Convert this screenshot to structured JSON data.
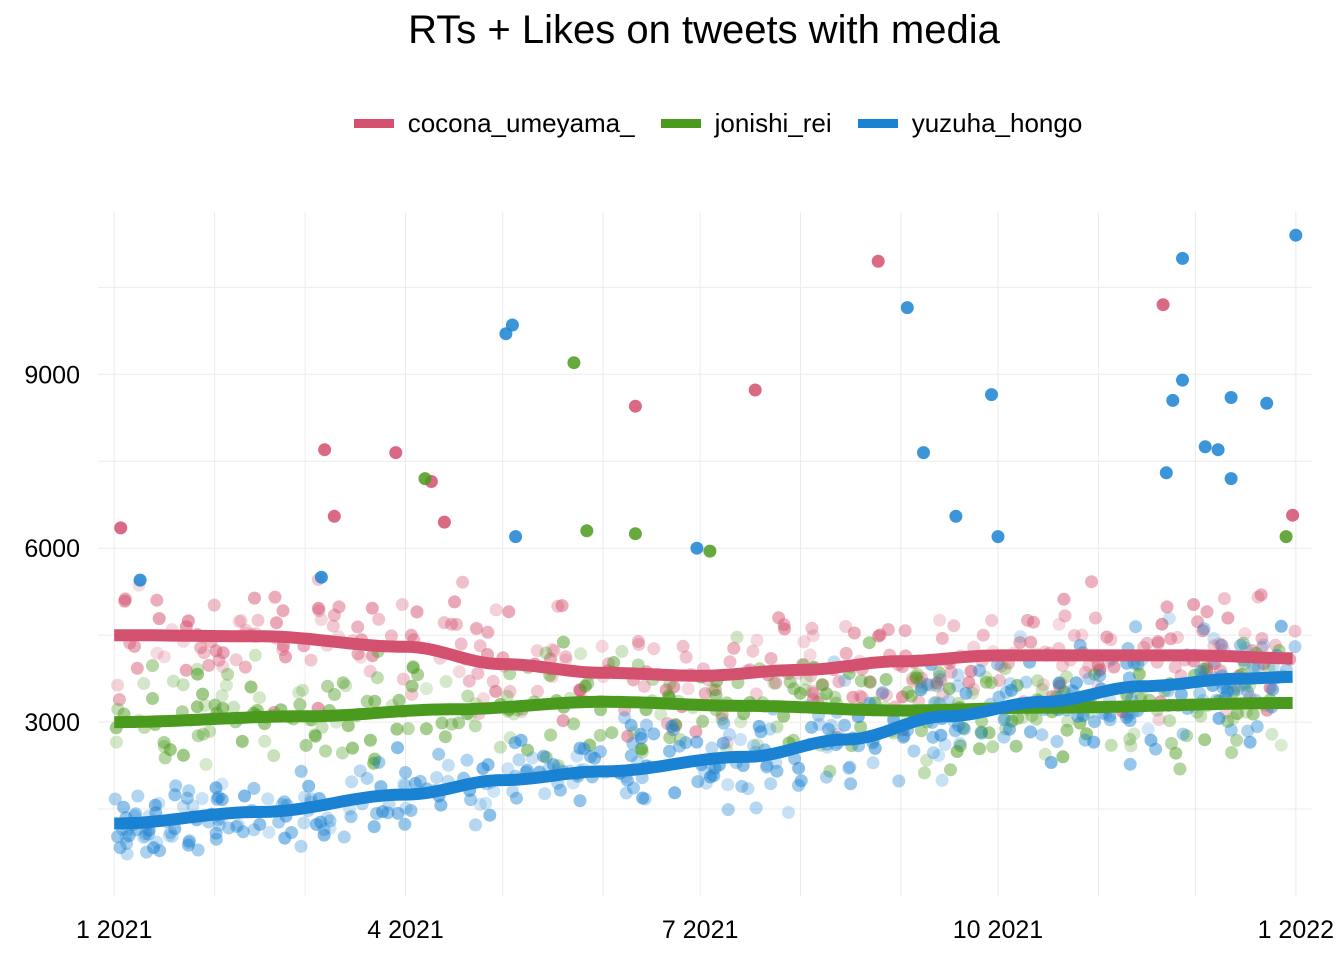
{
  "chart_data": {
    "type": "scatter",
    "title": "RTs + Likes on tweets with media",
    "xlabel": "",
    "ylabel": "",
    "x_ticks": [
      "1 2021",
      "4 2021",
      "7 2021",
      "10 2021",
      "1 2022"
    ],
    "y_ticks": [
      "3000",
      "6000",
      "9000"
    ],
    "xlim": [
      "2020-12-27",
      "2022-01-06"
    ],
    "ylim": [
      0,
      11800
    ],
    "grid": true,
    "legend_position": "top",
    "series": [
      {
        "name": "cocona_umeyama_",
        "color": "#d4506f",
        "trend": [
          [
            "2021-01-01",
            4500
          ],
          [
            "2021-02-15",
            4480
          ],
          [
            "2021-04-01",
            4300
          ],
          [
            "2021-05-01",
            4000
          ],
          [
            "2021-06-01",
            3850
          ],
          [
            "2021-07-01",
            3800
          ],
          [
            "2021-08-01",
            3900
          ],
          [
            "2021-09-01",
            4050
          ],
          [
            "2021-10-01",
            4150
          ],
          [
            "2021-11-01",
            4150
          ],
          [
            "2021-12-01",
            4150
          ],
          [
            "2022-01-01",
            4100
          ]
        ],
        "highlights": [
          [
            "2021-08-25",
            10950
          ],
          [
            "2021-11-21",
            10200
          ],
          [
            "2021-06-11",
            8450
          ],
          [
            "2021-07-18",
            8730
          ],
          [
            "2021-03-07",
            7700
          ],
          [
            "2021-03-29",
            7650
          ],
          [
            "2021-04-09",
            7150
          ],
          [
            "2021-01-03",
            6350
          ],
          [
            "2021-03-10",
            6550
          ],
          [
            "2021-04-13",
            6450
          ],
          [
            "2021-12-31",
            6570
          ]
        ]
      },
      {
        "name": "jonishi_rei",
        "color": "#4a9a1d",
        "trend": [
          [
            "2021-01-01",
            3000
          ],
          [
            "2021-03-01",
            3100
          ],
          [
            "2021-04-15",
            3220
          ],
          [
            "2021-06-01",
            3350
          ],
          [
            "2021-07-15",
            3280
          ],
          [
            "2021-09-01",
            3200
          ],
          [
            "2021-10-15",
            3250
          ],
          [
            "2022-01-01",
            3330
          ]
        ],
        "highlights": [
          [
            "2021-05-23",
            9200
          ],
          [
            "2021-04-07",
            7200
          ],
          [
            "2021-05-27",
            6300
          ],
          [
            "2021-06-11",
            6250
          ],
          [
            "2021-12-29",
            6200
          ],
          [
            "2021-07-04",
            5950
          ]
        ]
      },
      {
        "name": "yuzuha_hongo",
        "color": "#1a82d2",
        "trend": [
          [
            "2021-01-01",
            1250
          ],
          [
            "2021-02-15",
            1450
          ],
          [
            "2021-04-01",
            1750
          ],
          [
            "2021-05-01",
            2000
          ],
          [
            "2021-06-01",
            2150
          ],
          [
            "2021-07-15",
            2400
          ],
          [
            "2021-08-15",
            2700
          ],
          [
            "2021-09-15",
            3100
          ],
          [
            "2021-10-15",
            3350
          ],
          [
            "2021-11-15",
            3620
          ],
          [
            "2021-12-15",
            3750
          ],
          [
            "2022-01-01",
            3780
          ]
        ],
        "highlights": [
          [
            "2022-01-01",
            11400
          ],
          [
            "2021-11-27",
            11000
          ],
          [
            "2021-09-03",
            10150
          ],
          [
            "2021-05-04",
            9850
          ],
          [
            "2021-05-02",
            9700
          ],
          [
            "2021-11-27",
            8900
          ],
          [
            "2021-09-29",
            8650
          ],
          [
            "2021-11-24",
            8550
          ],
          [
            "2021-12-12",
            8600
          ],
          [
            "2021-12-23",
            8500
          ],
          [
            "2021-09-08",
            7650
          ],
          [
            "2021-12-04",
            7750
          ],
          [
            "2021-12-08",
            7700
          ],
          [
            "2021-12-12",
            7200
          ],
          [
            "2021-11-22",
            7300
          ],
          [
            "2021-09-18",
            6550
          ],
          [
            "2021-05-05",
            6200
          ],
          [
            "2021-06-30",
            6000
          ],
          [
            "2021-10-01",
            6200
          ],
          [
            "2021-01-09",
            5450
          ],
          [
            "2021-03-06",
            5500
          ]
        ]
      }
    ]
  }
}
